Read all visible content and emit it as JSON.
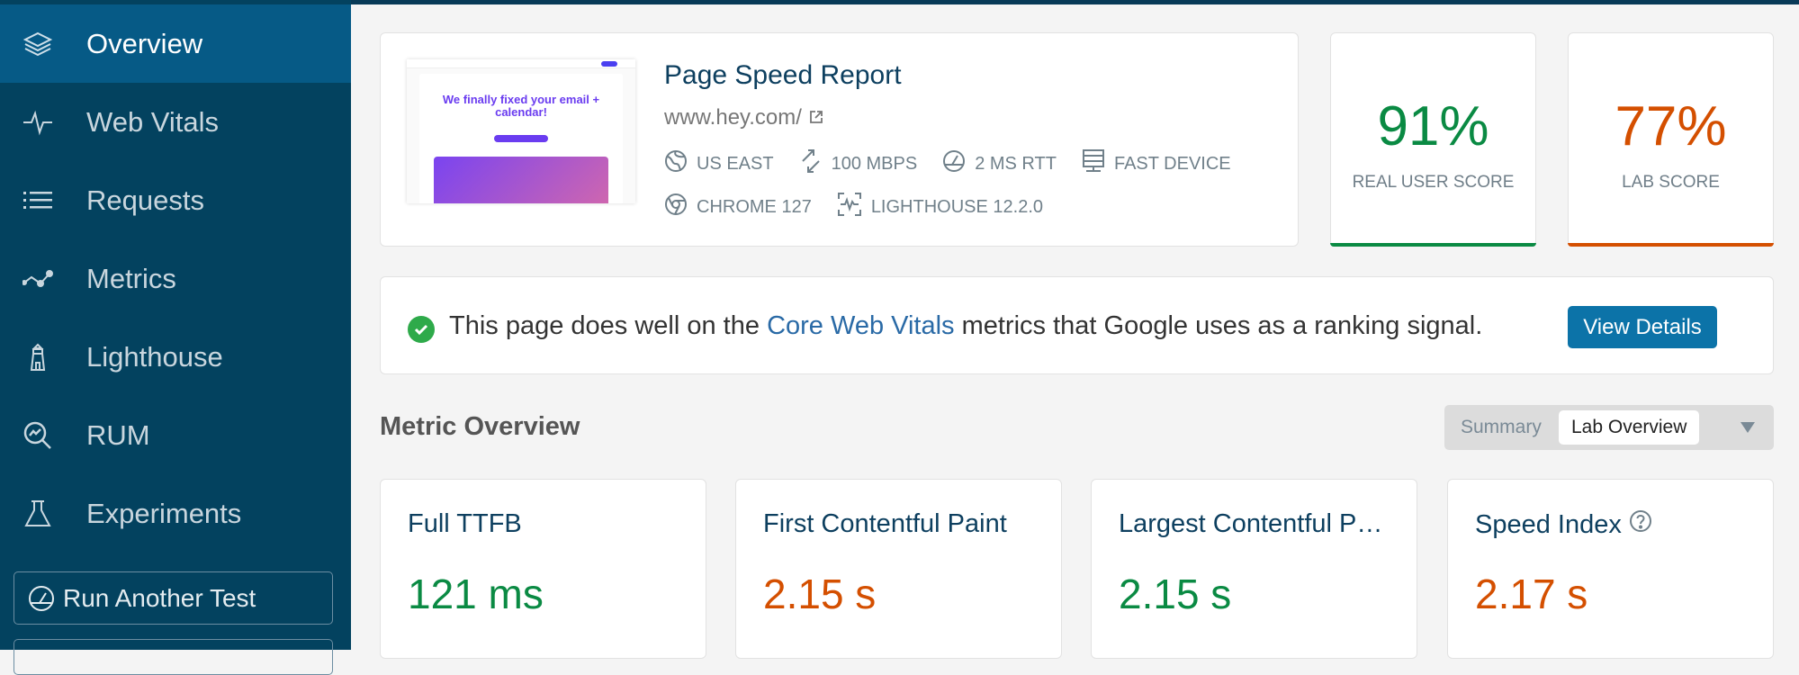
{
  "sidebar": {
    "items": [
      {
        "label": "Overview",
        "icon": "layers-icon",
        "active": true
      },
      {
        "label": "Web Vitals",
        "icon": "pulse-icon"
      },
      {
        "label": "Requests",
        "icon": "list-icon"
      },
      {
        "label": "Metrics",
        "icon": "line-chart-icon"
      },
      {
        "label": "Lighthouse",
        "icon": "lighthouse-icon"
      },
      {
        "label": "RUM",
        "icon": "search-chart-icon"
      },
      {
        "label": "Experiments",
        "icon": "flask-icon"
      }
    ],
    "run_another_test": "Run Another Test"
  },
  "header": {
    "title": "Page Speed Report",
    "url": "www.hey.com/",
    "thumbnail_headline": "We finally fixed your email + calendar!",
    "meta": [
      {
        "label": "US EAST",
        "icon": "globe-icon"
      },
      {
        "label": "100 MBPS",
        "icon": "bandwidth-icon"
      },
      {
        "label": "2 MS RTT",
        "icon": "gauge-icon"
      },
      {
        "label": "FAST DEVICE",
        "icon": "server-icon"
      },
      {
        "label": "CHROME 127",
        "icon": "chrome-icon"
      },
      {
        "label": "LIGHTHOUSE 12.2.0",
        "icon": "lighthouse-scan-icon"
      }
    ]
  },
  "scores": [
    {
      "value": "91%",
      "label": "REAL USER SCORE",
      "color": "#0a8a43"
    },
    {
      "value": "77%",
      "label": "LAB SCORE",
      "color": "#d44f00"
    }
  ],
  "banner": {
    "text_before": "This page does well on the ",
    "link": "Core Web Vitals",
    "text_after": " metrics that Google uses as a ranking signal.",
    "button": "View Details"
  },
  "metric_overview": {
    "heading": "Metric Overview",
    "toggle": {
      "options": [
        "Summary",
        "Lab Overview"
      ],
      "selected": "Lab Overview"
    },
    "cards": [
      {
        "title": "Full TTFB",
        "value": "121 ms",
        "status": "good"
      },
      {
        "title": "First Contentful Paint",
        "value": "2.15 s",
        "status": "needs-improvement"
      },
      {
        "title": "Largest Contentful Paint",
        "value": "2.15 s",
        "status": "good"
      },
      {
        "title": "Speed Index",
        "value": "2.17 s",
        "status": "needs-improvement",
        "help": true
      }
    ]
  },
  "colors": {
    "sidebar": "#03425f",
    "active": "#065a86",
    "good": "#0a8a43",
    "warn": "#d44f00",
    "accent": "#0c73a8"
  }
}
